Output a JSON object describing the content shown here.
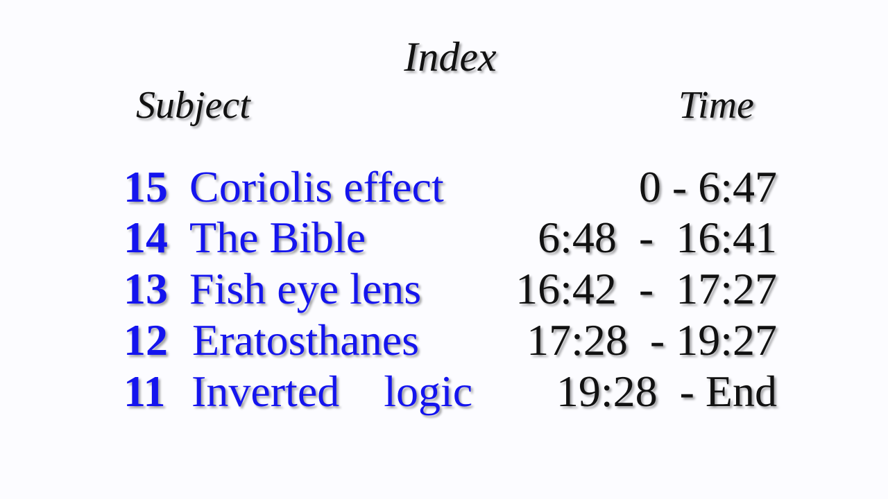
{
  "title": "Index",
  "headers": {
    "subject": "Subject",
    "time": "Time"
  },
  "entries": [
    {
      "number": "15",
      "subject": "Coriolis effect",
      "time": "0 - 6:47"
    },
    {
      "number": "14",
      "subject": "The Bible",
      "time": "6:48  -  16:41"
    },
    {
      "number": "13",
      "subject": "Fish eye lens",
      "time": "16:42  -  17:27"
    },
    {
      "number": "12",
      "subject": "Eratosthanes",
      "time": "17:28  - 19:27"
    },
    {
      "number": "11",
      "subject": "Inverted    logic",
      "time": "19:28  - End"
    }
  ],
  "colors": {
    "subject": "#1414ee",
    "time": "#111111",
    "background": "#fcfcff"
  }
}
